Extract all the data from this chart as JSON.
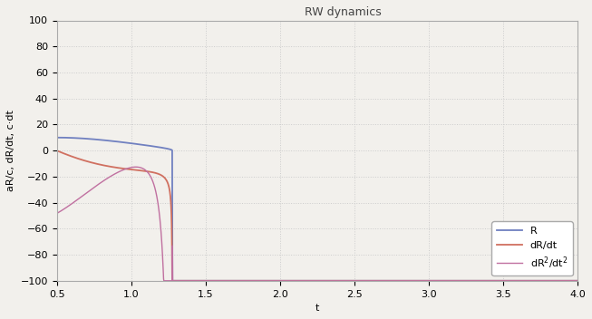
{
  "title": "RW dynamics",
  "xlabel": "t",
  "ylabel": "aR/c, dR/dt, c·dt",
  "xlim": [
    0.5,
    4.0
  ],
  "ylim": [
    -100,
    100
  ],
  "yticks": [
    -100,
    -80,
    -60,
    -40,
    -20,
    0,
    20,
    40,
    60,
    80,
    100
  ],
  "xticks": [
    0.5,
    1.0,
    1.5,
    2.0,
    2.5,
    3.0,
    3.5,
    4.0
  ],
  "color_R": "#7080c0",
  "color_dRdt": "#d07060",
  "color_d2Rdt2": "#c070a0",
  "bg_color": "#f2f0ec",
  "grid_color": "#cccccc",
  "title_fontsize": 9,
  "axis_fontsize": 8,
  "legend_fontsize": 8
}
